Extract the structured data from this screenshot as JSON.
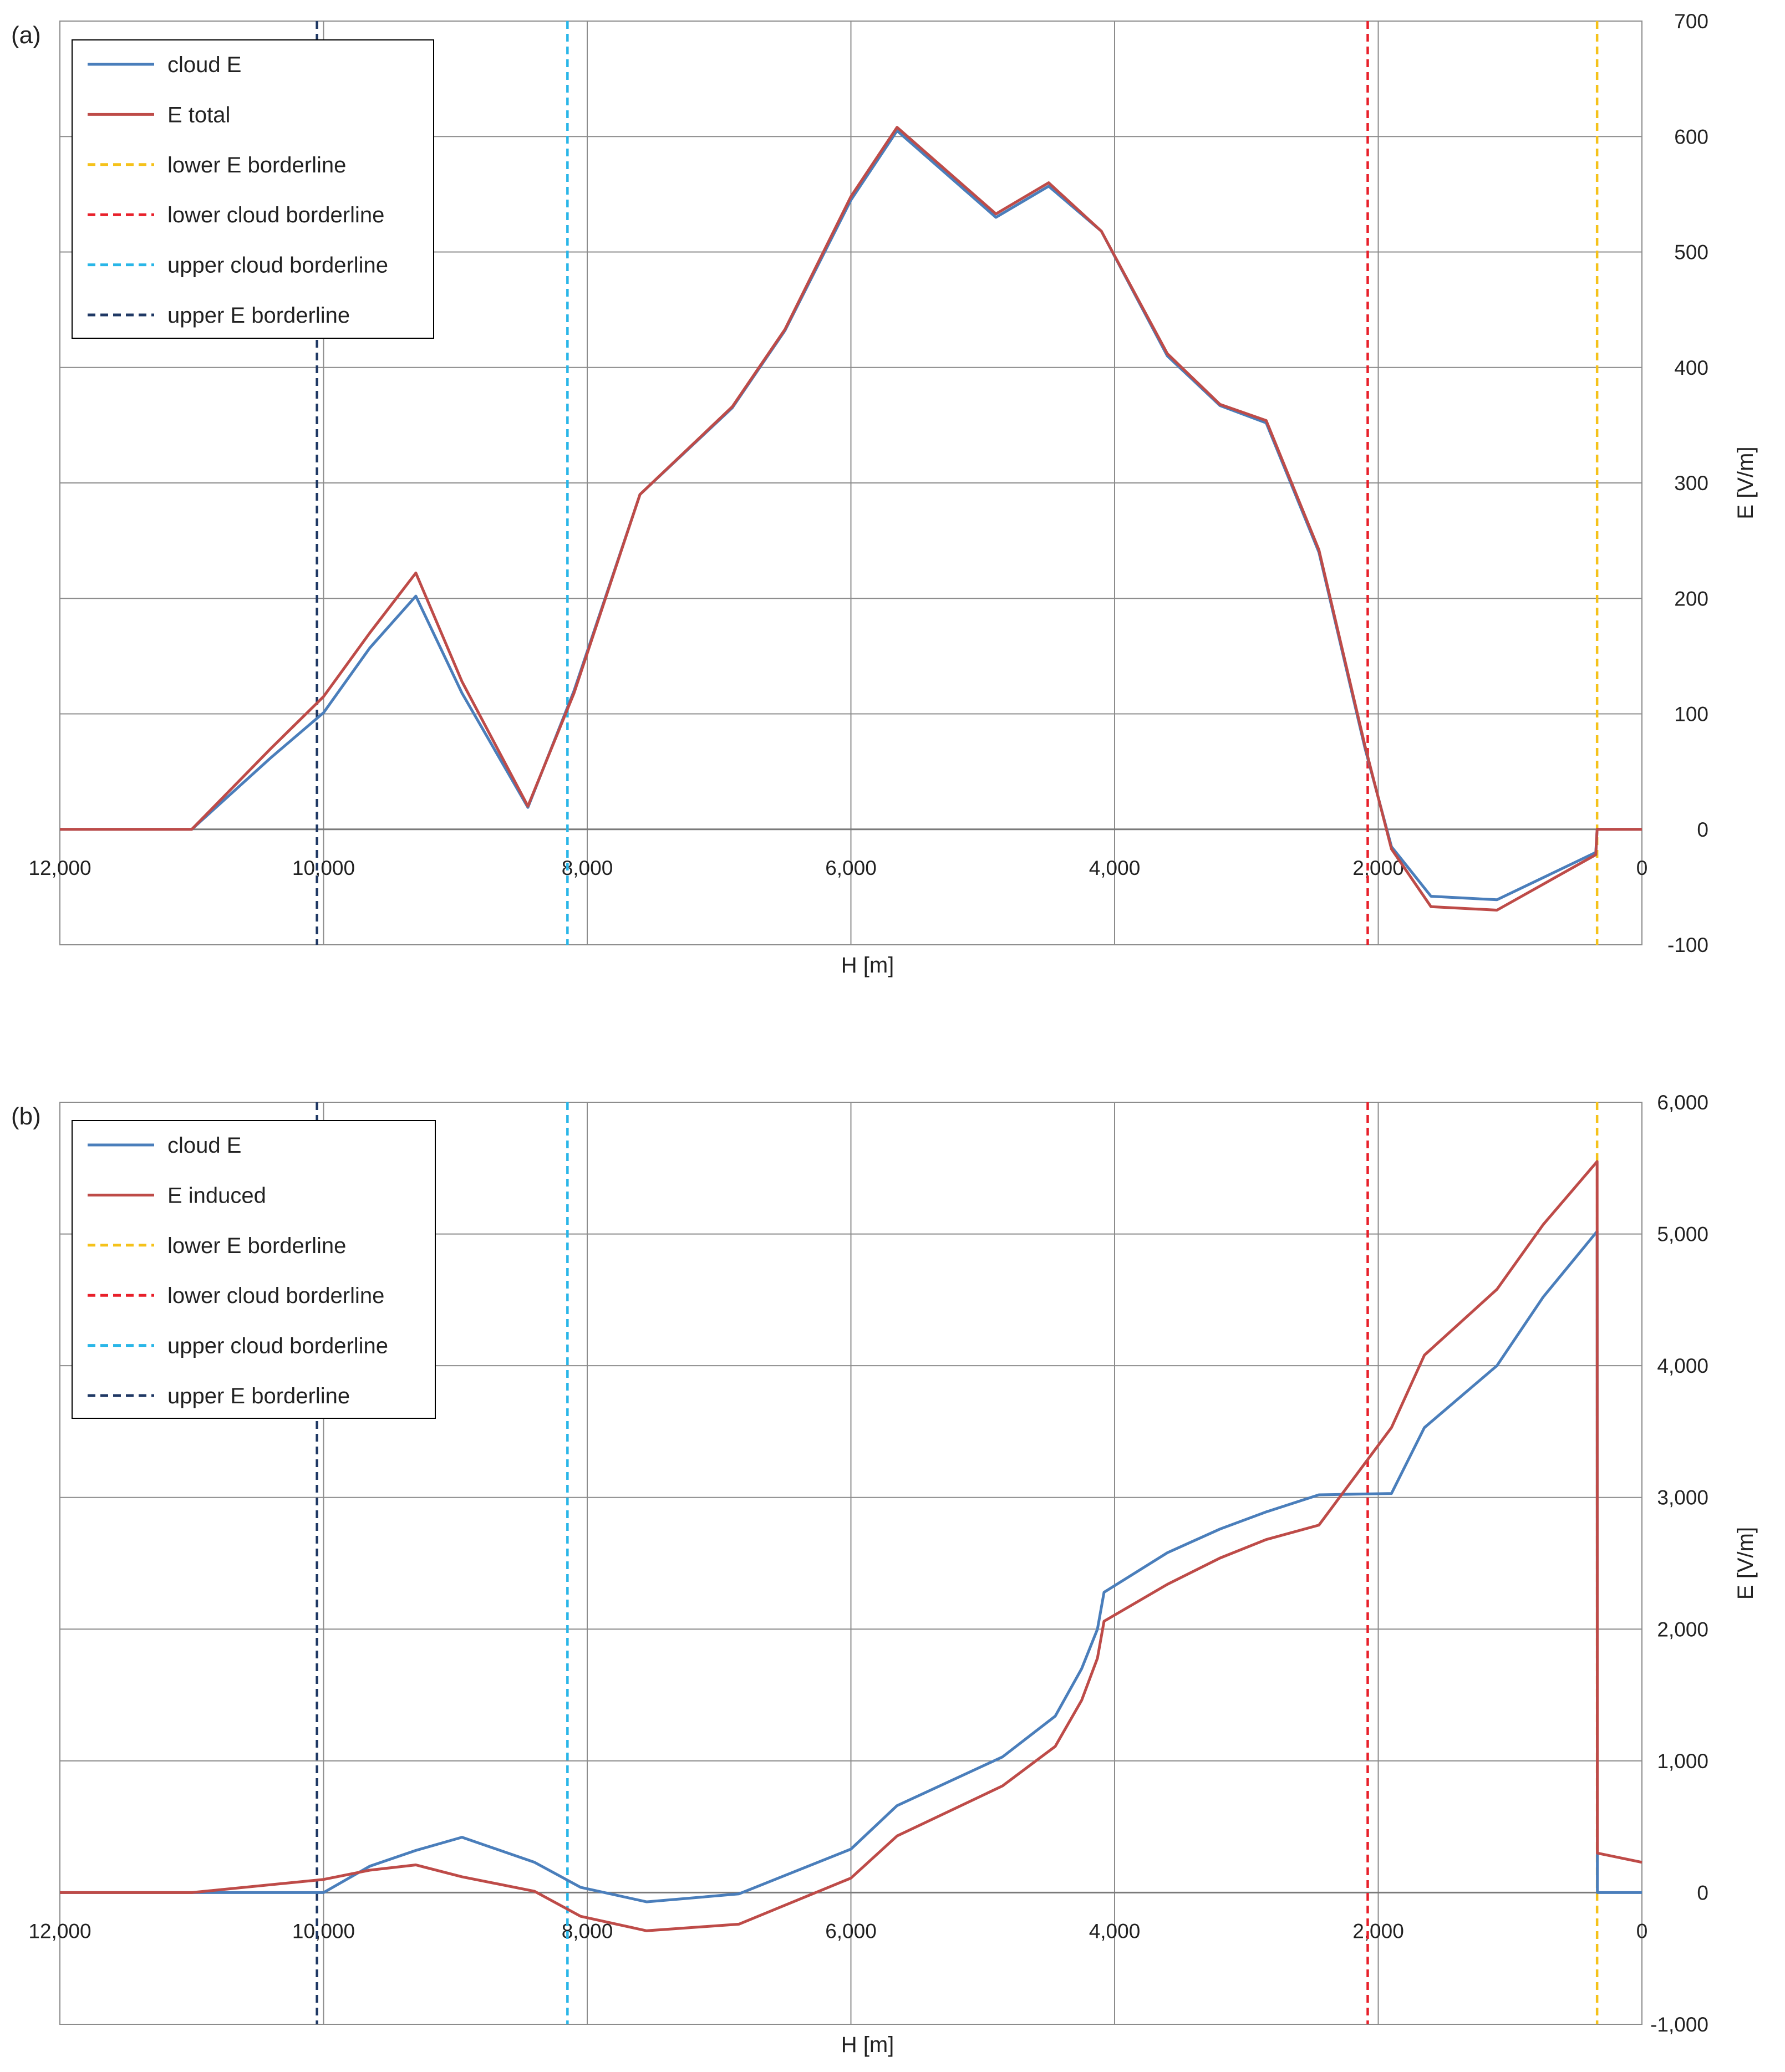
{
  "chart_data": [
    {
      "type": "line",
      "panel_label": "(a)",
      "xlabel": "H [m]",
      "ylabel": "E [V/m]",
      "xlim": [
        12000,
        0
      ],
      "ylim": [
        -100,
        700
      ],
      "x_ticks": [
        12000,
        10000,
        8000,
        6000,
        4000,
        2000,
        0
      ],
      "x_tick_labels": [
        "12,000",
        "10,000",
        "8,000",
        "6,000",
        "4,000",
        "2,000",
        "0"
      ],
      "y_ticks": [
        -100,
        0,
        100,
        200,
        300,
        400,
        500,
        600,
        700
      ],
      "y_tick_labels": [
        "-100",
        "0",
        "100",
        "200",
        "300",
        "400",
        "500",
        "600",
        "700"
      ],
      "grid": true,
      "legend_position": "top-left",
      "series": [
        {
          "name": "cloud E",
          "color": "#4a7ebb",
          "x": [
            12000,
            11000,
            10400,
            10000,
            9650,
            9300,
            8950,
            8450,
            8100,
            7600,
            6900,
            6500,
            6000,
            5650,
            4900,
            4500,
            4100,
            3600,
            3200,
            2850,
            2450,
            2100,
            1900,
            1600,
            1100,
            350,
            340,
            300,
            0
          ],
          "y": [
            0,
            0,
            62,
            101,
            157,
            202,
            118,
            19,
            120,
            290,
            365,
            432,
            545,
            605,
            530,
            557,
            518,
            410,
            367,
            352,
            240,
            70,
            -15,
            -58,
            -61,
            -20,
            0,
            0,
            0
          ]
        },
        {
          "name": "E total",
          "color": "#be4b48",
          "x": [
            12000,
            11000,
            10400,
            10000,
            9650,
            9300,
            8950,
            8450,
            8100,
            7600,
            6900,
            6500,
            6000,
            5650,
            4900,
            4500,
            4100,
            3600,
            3200,
            2850,
            2450,
            2100,
            1900,
            1600,
            1100,
            350,
            340,
            300,
            0
          ],
          "y": [
            0,
            0,
            70,
            115,
            170,
            222,
            128,
            20,
            118,
            290,
            366,
            433,
            548,
            608,
            533,
            560,
            518,
            412,
            368,
            354,
            242,
            72,
            -17,
            -67,
            -70,
            -22,
            0,
            0,
            0
          ]
        }
      ],
      "vertical_lines": [
        {
          "name": "lower E borderline",
          "x": 340,
          "color": "#f5c21b"
        },
        {
          "name": "lower cloud borderline",
          "x": 2080,
          "color": "#e8202a"
        },
        {
          "name": "upper cloud borderline",
          "x": 8150,
          "color": "#29b6e8"
        },
        {
          "name": "upper E borderline",
          "x": 10050,
          "color": "#1f3864"
        }
      ],
      "legend": [
        "cloud E",
        "E total",
        "lower E borderline",
        "lower cloud borderline",
        "upper cloud borderline",
        "upper E borderline"
      ]
    },
    {
      "type": "line",
      "panel_label": "(b)",
      "xlabel": "H [m]",
      "ylabel": "E [V/m]",
      "xlim": [
        12000,
        0
      ],
      "ylim": [
        -1000,
        6000
      ],
      "x_ticks": [
        12000,
        10000,
        8000,
        6000,
        4000,
        2000,
        0
      ],
      "x_tick_labels": [
        "12,000",
        "10,000",
        "8,000",
        "6,000",
        "4,000",
        "2,000",
        "0"
      ],
      "y_ticks": [
        -1000,
        0,
        1000,
        2000,
        3000,
        4000,
        5000,
        6000
      ],
      "y_tick_labels": [
        "-1,000",
        "0",
        "1,000",
        "2,000",
        "3,000",
        "4,000",
        "5,000",
        "6,000"
      ],
      "grid": true,
      "legend_position": "top-left",
      "series": [
        {
          "name": "cloud E",
          "color": "#4a7ebb",
          "x": [
            12000,
            11000,
            10000,
            9650,
            9300,
            8950,
            8400,
            8050,
            7550,
            6850,
            6000,
            5650,
            4850,
            4450,
            4250,
            4130,
            4080,
            3600,
            3200,
            2850,
            2450,
            1900,
            1650,
            1100,
            750,
            340,
            338,
            0
          ],
          "y": [
            0,
            0,
            0,
            200,
            320,
            420,
            230,
            40,
            -70,
            -10,
            330,
            660,
            1030,
            1340,
            1700,
            2000,
            2280,
            2580,
            2760,
            2890,
            3020,
            3030,
            3530,
            4000,
            4520,
            5020,
            0,
            0
          ]
        },
        {
          "name": "E induced",
          "color": "#be4b48",
          "x": [
            12000,
            11000,
            10000,
            9650,
            9300,
            8950,
            8400,
            8050,
            7550,
            6850,
            6000,
            5650,
            4850,
            4450,
            4250,
            4130,
            4080,
            3600,
            3200,
            2850,
            2450,
            1900,
            1650,
            1100,
            750,
            340,
            338,
            0
          ],
          "y": [
            0,
            0,
            100,
            170,
            210,
            120,
            10,
            -180,
            -290,
            -240,
            110,
            430,
            810,
            1110,
            1460,
            1780,
            2060,
            2340,
            2540,
            2680,
            2790,
            3530,
            4080,
            4580,
            5070,
            5550,
            300,
            230
          ]
        }
      ],
      "vertical_lines": [
        {
          "name": "lower E borderline",
          "x": 340,
          "color": "#f5c21b"
        },
        {
          "name": "lower cloud borderline",
          "x": 2080,
          "color": "#e8202a"
        },
        {
          "name": "upper cloud borderline",
          "x": 8150,
          "color": "#29b6e8"
        },
        {
          "name": "upper E borderline",
          "x": 10050,
          "color": "#1f3864"
        }
      ],
      "legend": [
        "cloud E",
        "E induced",
        "lower E borderline",
        "lower cloud borderline",
        "upper cloud borderline",
        "upper E borderline"
      ]
    }
  ]
}
